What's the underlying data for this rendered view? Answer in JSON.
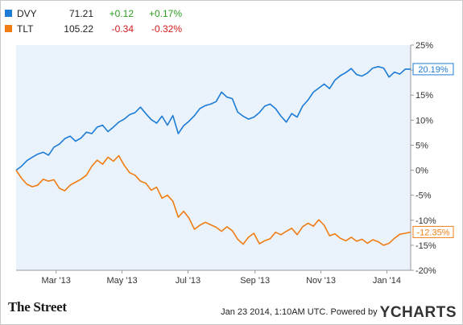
{
  "legend": [
    {
      "name": "DVY",
      "price": "71.21",
      "change": "+0.12",
      "pct": "+0.17%",
      "color": "#1c7cd6",
      "direction": "positive"
    },
    {
      "name": "TLT",
      "price": "105.22",
      "change": "-0.34",
      "pct": "-0.32%",
      "color": "#f07d14",
      "direction": "negative"
    }
  ],
  "footer": {
    "brand_left": "The Street",
    "timestamp": "Jan 23 2014, 1:10AM UTC.",
    "powered_by": "Powered by",
    "brand_right": "YCHARTS"
  },
  "chart_data": {
    "type": "line",
    "title": "",
    "xlabel": "",
    "ylabel": "",
    "x_tick_labels": [
      "Mar '13",
      "May '13",
      "Jul '13",
      "Sep '13",
      "Nov '13",
      "Jan '14"
    ],
    "y_tick_labels": [
      "25%",
      "20%",
      "15%",
      "10%",
      "5%",
      "0%",
      "-5%",
      "-10%",
      "-15%",
      "-20%"
    ],
    "ylim": [
      -20,
      25
    ],
    "xlim": [
      "2013-01-23",
      "2014-01-23"
    ],
    "grid": false,
    "plot_background": "#eaf2fb",
    "end_labels": [
      "20.19%",
      "-12.35%"
    ],
    "series": [
      {
        "name": "DVY",
        "color": "#1c7cd6",
        "points": [
          [
            "2013-01-23",
            0.0
          ],
          [
            "2013-01-28",
            0.8
          ],
          [
            "2013-02-02",
            1.9
          ],
          [
            "2013-02-07",
            2.6
          ],
          [
            "2013-02-12",
            3.2
          ],
          [
            "2013-02-17",
            3.6
          ],
          [
            "2013-02-22",
            3.0
          ],
          [
            "2013-02-27",
            4.6
          ],
          [
            "2013-03-04",
            5.2
          ],
          [
            "2013-03-09",
            6.3
          ],
          [
            "2013-03-14",
            6.8
          ],
          [
            "2013-03-19",
            5.8
          ],
          [
            "2013-03-24",
            6.4
          ],
          [
            "2013-03-29",
            7.6
          ],
          [
            "2013-04-03",
            7.3
          ],
          [
            "2013-04-08",
            8.6
          ],
          [
            "2013-04-13",
            9.0
          ],
          [
            "2013-04-18",
            7.7
          ],
          [
            "2013-04-23",
            8.6
          ],
          [
            "2013-04-28",
            9.6
          ],
          [
            "2013-05-03",
            10.2
          ],
          [
            "2013-05-08",
            11.1
          ],
          [
            "2013-05-13",
            11.5
          ],
          [
            "2013-05-18",
            12.6
          ],
          [
            "2013-05-23",
            11.3
          ],
          [
            "2013-05-28",
            10.1
          ],
          [
            "2013-06-02",
            9.4
          ],
          [
            "2013-06-07",
            10.8
          ],
          [
            "2013-06-12",
            9.0
          ],
          [
            "2013-06-17",
            10.9
          ],
          [
            "2013-06-22",
            7.3
          ],
          [
            "2013-06-27",
            8.9
          ],
          [
            "2013-07-02",
            9.8
          ],
          [
            "2013-07-07",
            10.9
          ],
          [
            "2013-07-12",
            12.3
          ],
          [
            "2013-07-17",
            12.9
          ],
          [
            "2013-07-22",
            13.2
          ],
          [
            "2013-07-27",
            13.7
          ],
          [
            "2013-08-01",
            15.6
          ],
          [
            "2013-08-06",
            14.6
          ],
          [
            "2013-08-11",
            14.3
          ],
          [
            "2013-08-16",
            11.6
          ],
          [
            "2013-08-21",
            10.8
          ],
          [
            "2013-08-26",
            10.2
          ],
          [
            "2013-08-31",
            10.6
          ],
          [
            "2013-09-05",
            11.5
          ],
          [
            "2013-09-10",
            12.8
          ],
          [
            "2013-09-15",
            13.2
          ],
          [
            "2013-09-20",
            12.3
          ],
          [
            "2013-09-25",
            10.8
          ],
          [
            "2013-09-30",
            9.6
          ],
          [
            "2013-10-05",
            11.3
          ],
          [
            "2013-10-10",
            10.6
          ],
          [
            "2013-10-15",
            12.8
          ],
          [
            "2013-10-20",
            14.0
          ],
          [
            "2013-10-25",
            15.6
          ],
          [
            "2013-10-30",
            16.4
          ],
          [
            "2013-11-04",
            17.2
          ],
          [
            "2013-11-09",
            16.3
          ],
          [
            "2013-11-14",
            18.0
          ],
          [
            "2013-11-19",
            18.9
          ],
          [
            "2013-11-24",
            19.5
          ],
          [
            "2013-11-29",
            20.3
          ],
          [
            "2013-12-04",
            19.1
          ],
          [
            "2013-12-09",
            18.8
          ],
          [
            "2013-12-14",
            19.4
          ],
          [
            "2013-12-19",
            20.4
          ],
          [
            "2013-12-24",
            20.7
          ],
          [
            "2013-12-29",
            20.4
          ],
          [
            "2014-01-03",
            18.6
          ],
          [
            "2014-01-08",
            19.6
          ],
          [
            "2014-01-13",
            19.2
          ],
          [
            "2014-01-18",
            20.2
          ],
          [
            "2014-01-23",
            20.19
          ]
        ]
      },
      {
        "name": "TLT",
        "color": "#f07d14",
        "points": [
          [
            "2013-01-23",
            0.0
          ],
          [
            "2013-01-28",
            -1.6
          ],
          [
            "2013-02-02",
            -2.8
          ],
          [
            "2013-02-07",
            -3.3
          ],
          [
            "2013-02-12",
            -3.0
          ],
          [
            "2013-02-17",
            -1.8
          ],
          [
            "2013-02-22",
            -2.2
          ],
          [
            "2013-02-27",
            -1.9
          ],
          [
            "2013-03-04",
            -3.6
          ],
          [
            "2013-03-09",
            -4.1
          ],
          [
            "2013-03-14",
            -3.0
          ],
          [
            "2013-03-19",
            -2.4
          ],
          [
            "2013-03-24",
            -1.8
          ],
          [
            "2013-03-29",
            -1.0
          ],
          [
            "2013-04-03",
            0.8
          ],
          [
            "2013-04-08",
            2.0
          ],
          [
            "2013-04-13",
            1.2
          ],
          [
            "2013-04-18",
            2.6
          ],
          [
            "2013-04-23",
            1.8
          ],
          [
            "2013-04-28",
            2.9
          ],
          [
            "2013-05-03",
            1.0
          ],
          [
            "2013-05-08",
            -0.5
          ],
          [
            "2013-05-13",
            -1.0
          ],
          [
            "2013-05-18",
            -2.2
          ],
          [
            "2013-05-23",
            -2.6
          ],
          [
            "2013-05-28",
            -4.0
          ],
          [
            "2013-06-02",
            -3.4
          ],
          [
            "2013-06-07",
            -5.6
          ],
          [
            "2013-06-12",
            -5.0
          ],
          [
            "2013-06-17",
            -6.2
          ],
          [
            "2013-06-22",
            -9.4
          ],
          [
            "2013-06-27",
            -8.2
          ],
          [
            "2013-07-02",
            -9.6
          ],
          [
            "2013-07-07",
            -11.8
          ],
          [
            "2013-07-12",
            -11.0
          ],
          [
            "2013-07-17",
            -10.4
          ],
          [
            "2013-07-22",
            -10.9
          ],
          [
            "2013-07-27",
            -11.4
          ],
          [
            "2013-08-01",
            -12.2
          ],
          [
            "2013-08-06",
            -11.3
          ],
          [
            "2013-08-11",
            -12.1
          ],
          [
            "2013-08-16",
            -13.8
          ],
          [
            "2013-08-21",
            -14.8
          ],
          [
            "2013-08-26",
            -13.4
          ],
          [
            "2013-08-31",
            -12.6
          ],
          [
            "2013-09-05",
            -14.7
          ],
          [
            "2013-09-10",
            -14.1
          ],
          [
            "2013-09-15",
            -13.7
          ],
          [
            "2013-09-20",
            -12.4
          ],
          [
            "2013-09-25",
            -12.9
          ],
          [
            "2013-09-30",
            -12.2
          ],
          [
            "2013-10-05",
            -11.6
          ],
          [
            "2013-10-10",
            -12.9
          ],
          [
            "2013-10-15",
            -11.3
          ],
          [
            "2013-10-20",
            -10.6
          ],
          [
            "2013-10-25",
            -11.2
          ],
          [
            "2013-10-30",
            -9.9
          ],
          [
            "2013-11-04",
            -11.0
          ],
          [
            "2013-11-09",
            -13.1
          ],
          [
            "2013-11-14",
            -12.7
          ],
          [
            "2013-11-19",
            -13.6
          ],
          [
            "2013-11-24",
            -14.1
          ],
          [
            "2013-11-29",
            -13.4
          ],
          [
            "2013-12-04",
            -14.2
          ],
          [
            "2013-12-09",
            -13.8
          ],
          [
            "2013-12-14",
            -14.6
          ],
          [
            "2013-12-19",
            -13.9
          ],
          [
            "2013-12-24",
            -14.3
          ],
          [
            "2013-12-29",
            -15.0
          ],
          [
            "2014-01-03",
            -14.6
          ],
          [
            "2014-01-08",
            -13.6
          ],
          [
            "2014-01-13",
            -12.8
          ],
          [
            "2014-01-18",
            -12.6
          ],
          [
            "2014-01-23",
            -12.35
          ]
        ]
      }
    ]
  }
}
